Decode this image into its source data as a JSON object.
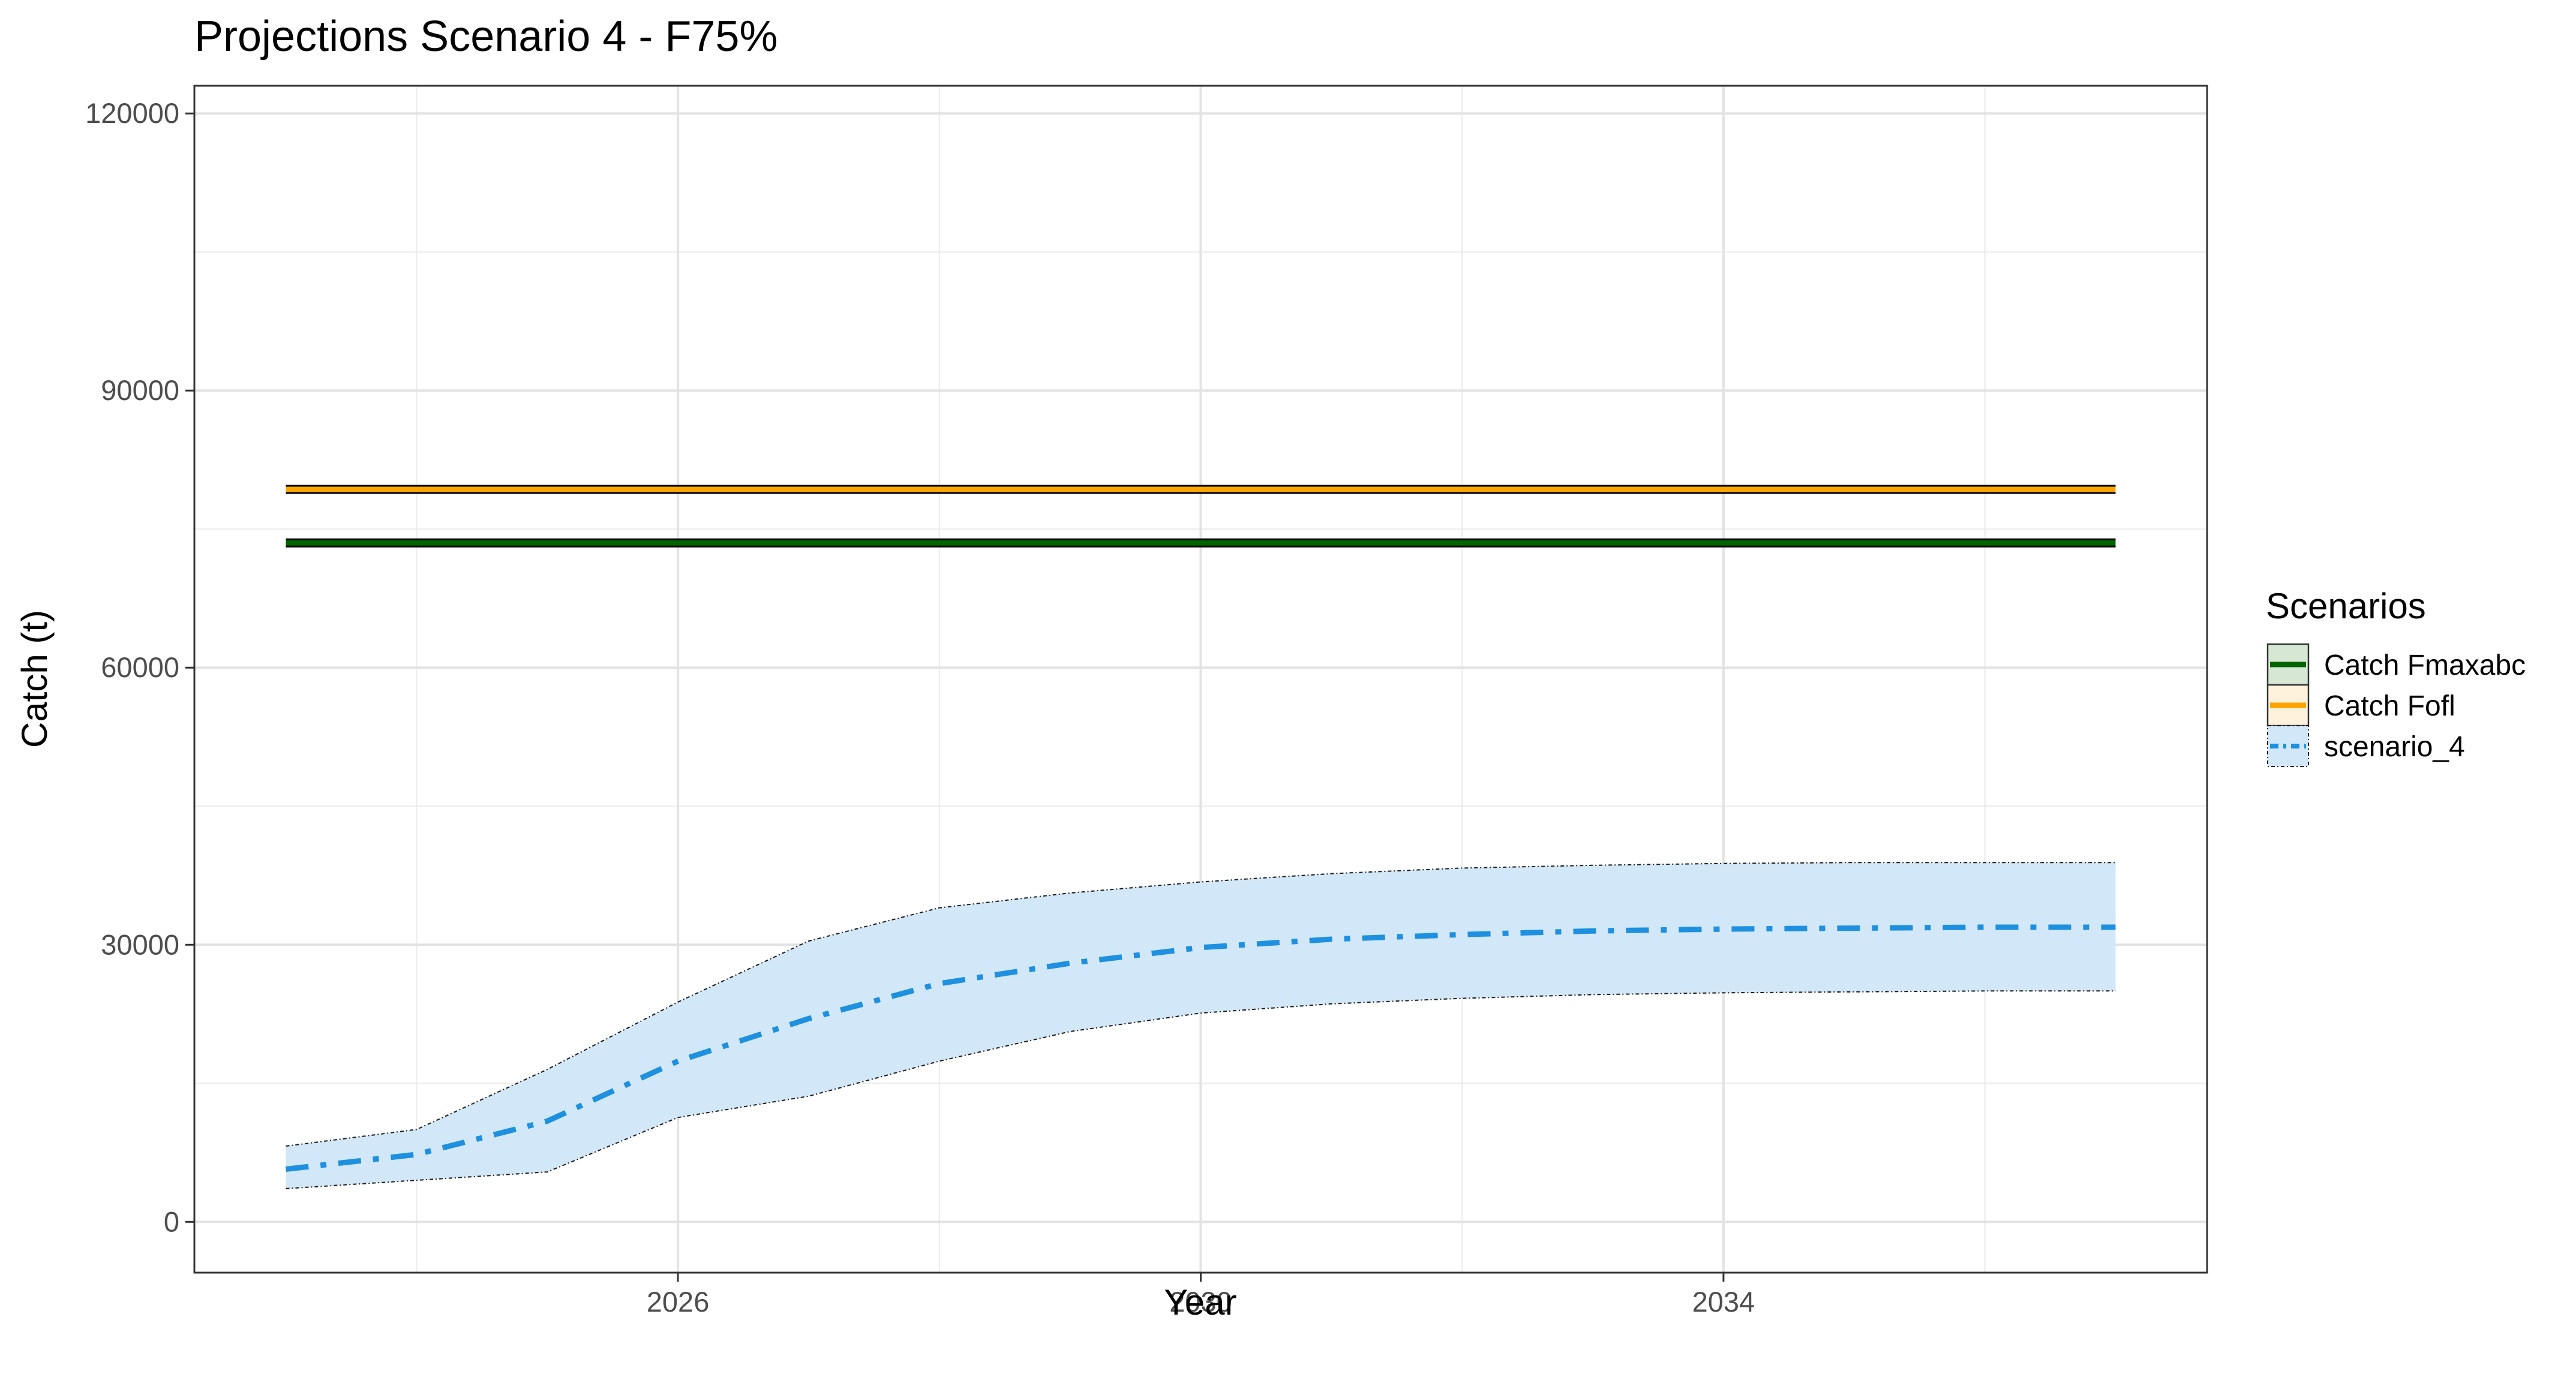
{
  "chart_data": {
    "type": "line",
    "title": "Projections Scenario 4 - F75%",
    "xlabel": "Year",
    "ylabel": "Catch (t)",
    "xlim": [
      2022.3,
      2037.7
    ],
    "ylim": [
      -5500,
      123000
    ],
    "x_ticks": [
      2026,
      2030,
      2034
    ],
    "x_tick_labels": [
      "2026",
      "2030",
      "2034"
    ],
    "x_minor_grid": [
      2024,
      2028,
      2032,
      2036
    ],
    "y_ticks": [
      0,
      30000,
      60000,
      90000,
      120000
    ],
    "y_tick_labels": [
      "0",
      "30000",
      "60000",
      "90000",
      "120000"
    ],
    "y_minor_grid": [
      15000,
      45000,
      75000,
      105000
    ],
    "grid": true,
    "legend": {
      "title": "Scenarios",
      "position": "right"
    },
    "x": [
      2023,
      2024,
      2025,
      2026,
      2027,
      2028,
      2029,
      2030,
      2031,
      2032,
      2033,
      2034,
      2035,
      2036,
      2037
    ],
    "series": [
      {
        "name": "Catch Fmaxabc",
        "style": "solid",
        "color": "#006400",
        "outline": "#000000",
        "values": [
          73500,
          73500,
          73500,
          73500,
          73500,
          73500,
          73500,
          73500,
          73500,
          73500,
          73500,
          73500,
          73500,
          73500,
          73500
        ]
      },
      {
        "name": "Catch Fofl",
        "style": "solid",
        "color": "#FFA500",
        "outline": "#000000",
        "values": [
          79300,
          79300,
          79300,
          79300,
          79300,
          79300,
          79300,
          79300,
          79300,
          79300,
          79300,
          79300,
          79300,
          79300,
          79300
        ]
      },
      {
        "name": "scenario_4",
        "style": "dashdot",
        "color": "#1E90E0",
        "band_color": "#D2E7F7",
        "values": [
          5700,
          7300,
          10900,
          17400,
          22000,
          25800,
          28000,
          29700,
          30600,
          31100,
          31500,
          31700,
          31800,
          31900,
          31900
        ],
        "lower": [
          3600,
          4500,
          5400,
          11300,
          13600,
          17400,
          20600,
          22600,
          23600,
          24200,
          24600,
          24800,
          24900,
          25000,
          25000
        ],
        "upper": [
          8200,
          10000,
          16500,
          23800,
          30400,
          34000,
          35600,
          36800,
          37700,
          38300,
          38600,
          38800,
          38900,
          38900,
          38900
        ]
      }
    ]
  }
}
